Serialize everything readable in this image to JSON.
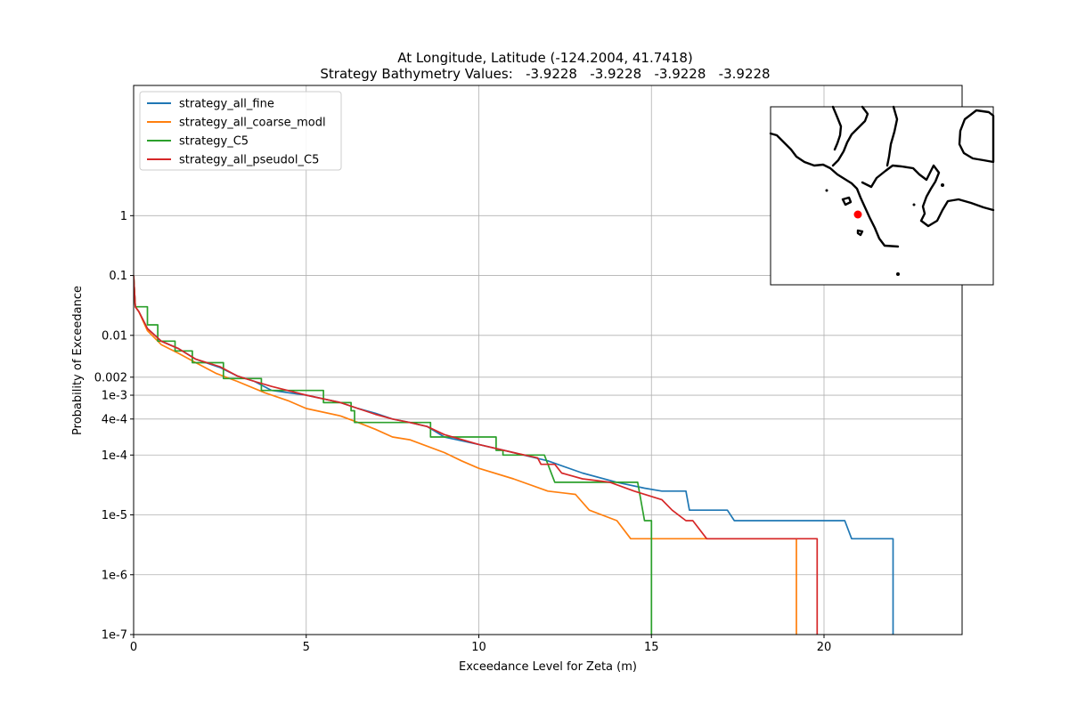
{
  "chart_data": {
    "type": "line",
    "title": "At Longitude, Latitude (-124.2004,  41.7418)",
    "subtitle": "Strategy Bathymetry Values:   -3.9228   -3.9228   -3.9228   -3.9228",
    "xlabel": "Exceedance Level for Zeta (m)",
    "ylabel": "Probability of Exceedance",
    "xlim": [
      0,
      24
    ],
    "ylim": [
      1e-07,
      150
    ],
    "yscale": "log",
    "grid": true,
    "legend_position": "top-left",
    "x_ticks": [
      {
        "value": 0,
        "label": "0"
      },
      {
        "value": 5,
        "label": "5"
      },
      {
        "value": 10,
        "label": "10"
      },
      {
        "value": 15,
        "label": "15"
      },
      {
        "value": 20,
        "label": "20"
      }
    ],
    "y_ticks": [
      {
        "value": 1,
        "label": "1"
      },
      {
        "value": 0.1,
        "label": "0.1"
      },
      {
        "value": 0.01,
        "label": "0.01"
      },
      {
        "value": 0.002,
        "label": "0.002"
      },
      {
        "value": 0.001,
        "label": "1e-3"
      },
      {
        "value": 0.0004,
        "label": "4e-4"
      },
      {
        "value": 0.0001,
        "label": "1e-4"
      },
      {
        "value": 1e-05,
        "label": "1e-5"
      },
      {
        "value": 1e-06,
        "label": "1e-6"
      },
      {
        "value": 1e-07,
        "label": "1e-7"
      }
    ],
    "series": [
      {
        "name": "strategy_all_fine",
        "color": "#1f77b4",
        "points": [
          [
            0,
            0.1
          ],
          [
            0.05,
            0.03
          ],
          [
            0.15,
            0.025
          ],
          [
            0.4,
            0.013
          ],
          [
            0.8,
            0.008
          ],
          [
            1.3,
            0.006
          ],
          [
            1.8,
            0.004
          ],
          [
            2.5,
            0.0029
          ],
          [
            3,
            0.0021
          ],
          [
            3.5,
            0.0017
          ],
          [
            4,
            0.0012
          ],
          [
            5,
            0.001
          ],
          [
            6,
            0.00075
          ],
          [
            6.5,
            0.0006
          ],
          [
            7,
            0.0005
          ],
          [
            7.5,
            0.0004
          ],
          [
            8,
            0.00035
          ],
          [
            8.5,
            0.0003
          ],
          [
            9,
            0.0002
          ],
          [
            10,
            0.00015
          ],
          [
            11,
            0.00011
          ],
          [
            12,
            8e-05
          ],
          [
            13,
            5e-05
          ],
          [
            14,
            3.5e-05
          ],
          [
            14.8,
            2.8e-05
          ],
          [
            15.3,
            2.5e-05
          ],
          [
            16,
            2.5e-05
          ],
          [
            16.1,
            1.2e-05
          ],
          [
            17.2,
            1.2e-05
          ],
          [
            17.4,
            8e-06
          ],
          [
            20.6,
            8e-06
          ],
          [
            20.8,
            4e-06
          ],
          [
            22,
            4e-06
          ],
          [
            22,
            1e-07
          ]
        ]
      },
      {
        "name": "strategy_all_coarse_modl",
        "color": "#ff7f0e",
        "points": [
          [
            0,
            0.1
          ],
          [
            0.05,
            0.03
          ],
          [
            0.15,
            0.025
          ],
          [
            0.4,
            0.012
          ],
          [
            0.8,
            0.007
          ],
          [
            1.3,
            0.005
          ],
          [
            1.8,
            0.0035
          ],
          [
            2.4,
            0.0023
          ],
          [
            3,
            0.0017
          ],
          [
            3.8,
            0.0011
          ],
          [
            4.5,
            0.0008
          ],
          [
            5,
            0.0006
          ],
          [
            6,
            0.00045
          ],
          [
            6.5,
            0.00035
          ],
          [
            7,
            0.00027
          ],
          [
            7.5,
            0.0002
          ],
          [
            8,
            0.00018
          ],
          [
            9,
            0.00011
          ],
          [
            9.5,
            8e-05
          ],
          [
            10,
            6e-05
          ],
          [
            11,
            4e-05
          ],
          [
            12,
            2.5e-05
          ],
          [
            12.8,
            2.2e-05
          ],
          [
            13.2,
            1.2e-05
          ],
          [
            14,
            8e-06
          ],
          [
            14.4,
            4e-06
          ],
          [
            19.2,
            4e-06
          ],
          [
            19.2,
            1e-07
          ]
        ]
      },
      {
        "name": "strategy_C5",
        "color": "#2ca02c",
        "points": [
          [
            0,
            0.1
          ],
          [
            0.05,
            0.03
          ],
          [
            0.4,
            0.03
          ],
          [
            0.4,
            0.015
          ],
          [
            0.7,
            0.015
          ],
          [
            0.7,
            0.008
          ],
          [
            1.2,
            0.008
          ],
          [
            1.2,
            0.0055
          ],
          [
            1.7,
            0.0055
          ],
          [
            1.7,
            0.0035
          ],
          [
            2.6,
            0.0035
          ],
          [
            2.6,
            0.0019
          ],
          [
            3.7,
            0.0019
          ],
          [
            3.7,
            0.0012
          ],
          [
            5.5,
            0.0012
          ],
          [
            5.5,
            0.00075
          ],
          [
            6.3,
            0.00075
          ],
          [
            6.3,
            0.00055
          ],
          [
            6.4,
            0.00055
          ],
          [
            6.4,
            0.00035
          ],
          [
            8.6,
            0.00035
          ],
          [
            8.6,
            0.0002
          ],
          [
            10.5,
            0.0002
          ],
          [
            10.5,
            0.00012
          ],
          [
            10.7,
            0.00012
          ],
          [
            10.7,
            0.0001
          ],
          [
            11.9,
            0.0001
          ],
          [
            12.2,
            3.5e-05
          ],
          [
            14.6,
            3.5e-05
          ],
          [
            14.8,
            8e-06
          ],
          [
            15,
            8e-06
          ],
          [
            15,
            1e-07
          ]
        ]
      },
      {
        "name": "strategy_all_pseudol_C5",
        "color": "#d62728",
        "points": [
          [
            0,
            0.1
          ],
          [
            0.05,
            0.03
          ],
          [
            0.15,
            0.025
          ],
          [
            0.4,
            0.013
          ],
          [
            0.8,
            0.008
          ],
          [
            1.3,
            0.006
          ],
          [
            1.8,
            0.004
          ],
          [
            2.5,
            0.003
          ],
          [
            3,
            0.0021
          ],
          [
            3.5,
            0.0017
          ],
          [
            4,
            0.0014
          ],
          [
            5,
            0.001
          ],
          [
            6,
            0.00075
          ],
          [
            6.5,
            0.0006
          ],
          [
            7,
            0.00048
          ],
          [
            7.5,
            0.0004
          ],
          [
            8,
            0.00035
          ],
          [
            8.5,
            0.0003
          ],
          [
            9,
            0.00022
          ],
          [
            10,
            0.00015
          ],
          [
            11,
            0.00011
          ],
          [
            11.7,
            9e-05
          ],
          [
            11.8,
            7e-05
          ],
          [
            12.2,
            7e-05
          ],
          [
            12.4,
            5e-05
          ],
          [
            13,
            4e-05
          ],
          [
            13.8,
            3.5e-05
          ],
          [
            14.5,
            2.5e-05
          ],
          [
            15.3,
            1.8e-05
          ],
          [
            15.6,
            1.2e-05
          ],
          [
            16,
            8e-06
          ],
          [
            16.2,
            8e-06
          ],
          [
            16.6,
            4e-06
          ],
          [
            19.8,
            4e-06
          ],
          [
            19.8,
            1e-07
          ]
        ]
      }
    ],
    "inset_map": {
      "marker_longitude": -124.2004,
      "marker_latitude": 41.7418,
      "marker_color": "#ff0000"
    }
  }
}
